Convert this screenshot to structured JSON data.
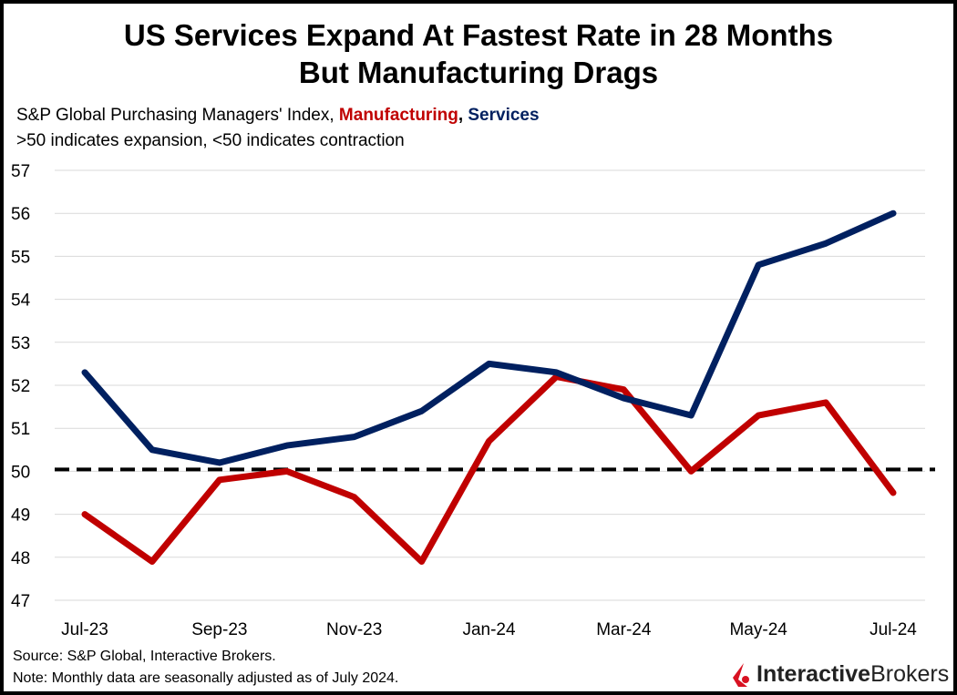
{
  "chart_data": {
    "type": "line",
    "title": "US Services Expand At Fastest Rate in 28 Months But Manufacturing Drags",
    "title_lines": [
      "US Services Expand At Fastest Rate in 28 Months",
      "But Manufacturing Drags"
    ],
    "subtitle": {
      "prefix": "S&P Global Purchasing Managers' Index, ",
      "manufacturing": "Manufacturing",
      "sep": ", ",
      "services": "Services",
      "line2": ">50 indicates expansion, <50 indicates contraction"
    },
    "x": [
      "Jul-23",
      "Aug-23",
      "Sep-23",
      "Oct-23",
      "Nov-23",
      "Dec-23",
      "Jan-24",
      "Feb-24",
      "Mar-24",
      "Apr-24",
      "May-24",
      "Jun-24",
      "Jul-24"
    ],
    "x_tick_labels": [
      "Jul-23",
      "Sep-23",
      "Nov-23",
      "Jan-24",
      "Mar-24",
      "May-24",
      "Jul-24"
    ],
    "y_ticks": [
      47,
      48,
      49,
      50,
      51,
      52,
      53,
      54,
      55,
      56,
      57
    ],
    "ylim": [
      47,
      57
    ],
    "grid": true,
    "reference_line": {
      "value": 50,
      "style": "dashed",
      "color": "#000000"
    },
    "series": [
      {
        "name": "Services",
        "color": "#002060",
        "values": [
          52.3,
          50.5,
          50.2,
          50.6,
          50.8,
          51.4,
          52.5,
          52.3,
          51.7,
          51.3,
          54.8,
          55.3,
          56.0
        ]
      },
      {
        "name": "Manufacturing",
        "color": "#c00000",
        "values": [
          49.0,
          47.9,
          49.8,
          50.0,
          49.4,
          47.9,
          50.7,
          52.2,
          51.9,
          50.0,
          51.3,
          51.6,
          49.5
        ]
      }
    ]
  },
  "footer": {
    "source": "Source: S&P Global, Interactive Brokers.",
    "note": "Note: Monthly data are seasonally adjusted as of July 2024."
  },
  "logo": {
    "bold": "Interactive",
    "regular": "Brokers",
    "color": "#d81222"
  }
}
